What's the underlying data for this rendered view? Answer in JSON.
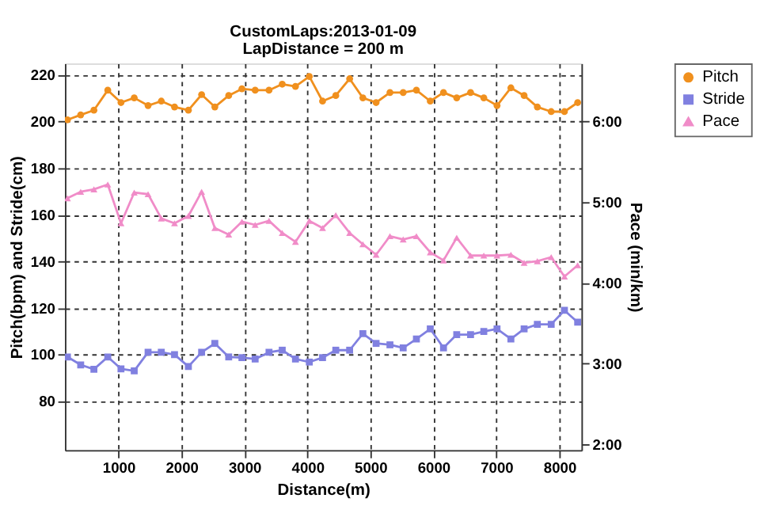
{
  "chart_data": {
    "type": "line",
    "title": "CustomLaps:2013-01-09",
    "subtitle": "LapDistance = 200 m",
    "xlabel": "Distance(m)",
    "ylabel": "Pitch(bpm) and Stride(cm)",
    "y2label": "Pace (min/km)",
    "x": [
      190,
      400,
      610,
      830,
      1040,
      1250,
      1470,
      1680,
      1890,
      2110,
      2320,
      2530,
      2750,
      2960,
      3170,
      3390,
      3600,
      3810,
      4030,
      4240,
      4450,
      4670,
      4880,
      5090,
      5310,
      5520,
      5730,
      5950,
      6160,
      6370,
      6590,
      6800,
      7010,
      7230,
      7440,
      7650,
      7870,
      8080,
      8290
    ],
    "series": [
      {
        "name": "Pitch",
        "color": "#f0901e",
        "marker": "circle",
        "values": [
          200.8,
          202.9,
          204.9,
          213.5,
          208.2,
          210.2,
          206.9,
          208.8,
          206.3,
          204.9,
          211.6,
          206.3,
          211.2,
          214.1,
          213.5,
          213.5,
          216.1,
          215.1,
          219.4,
          208.8,
          211.2,
          218.4,
          210.2,
          208.2,
          212.5,
          212.5,
          213.5,
          208.8,
          212.5,
          210.2,
          212.5,
          210.2,
          206.9,
          214.5,
          211.2,
          206.3,
          204.3,
          204.3,
          208.2
        ]
      },
      {
        "name": "Stride",
        "color": "#8080e0",
        "marker": "square",
        "values": [
          99.0,
          95.6,
          93.7,
          99.0,
          93.9,
          93.0,
          101.0,
          101.0,
          100.0,
          94.9,
          101.0,
          104.8,
          99.0,
          98.7,
          98.1,
          101.0,
          101.9,
          98.1,
          96.8,
          98.7,
          101.9,
          101.9,
          109.0,
          104.8,
          104.2,
          102.9,
          106.7,
          111.0,
          102.9,
          108.6,
          108.6,
          109.9,
          111.0,
          106.7,
          111.0,
          113.0,
          113.0,
          119.0,
          113.9
        ]
      },
      {
        "name": "Pace",
        "color": "#f08cc8",
        "marker": "triangle",
        "axis": "y2",
        "values": [
          5.05,
          5.13,
          5.16,
          5.22,
          4.74,
          5.12,
          5.1,
          4.8,
          4.74,
          4.83,
          5.13,
          4.68,
          4.6,
          4.76,
          4.72,
          4.77,
          4.62,
          4.51,
          4.77,
          4.68,
          4.84,
          4.62,
          4.48,
          4.35,
          4.58,
          4.54,
          4.58,
          4.38,
          4.28,
          4.56,
          4.34,
          4.34,
          4.34,
          4.35,
          4.25,
          4.27,
          4.32,
          4.08,
          4.22
        ]
      }
    ],
    "xlim": [
      150,
      8350
    ],
    "xticks": [
      1000,
      2000,
      3000,
      4000,
      5000,
      6000,
      7000,
      8000
    ],
    "ylim": [
      59,
      225
    ],
    "yticks": [
      80,
      100,
      120,
      140,
      160,
      180,
      200,
      220
    ],
    "y2lim": [
      1.93,
      6.72
    ],
    "y2ticks": [
      {
        "value": 2,
        "label": "2:00"
      },
      {
        "value": 3,
        "label": "3:00"
      },
      {
        "value": 4,
        "label": "4:00"
      },
      {
        "value": 5,
        "label": "5:00"
      },
      {
        "value": 6,
        "label": "6:00"
      }
    ],
    "grid": true,
    "legend": "top right",
    "line_style": "solid"
  }
}
